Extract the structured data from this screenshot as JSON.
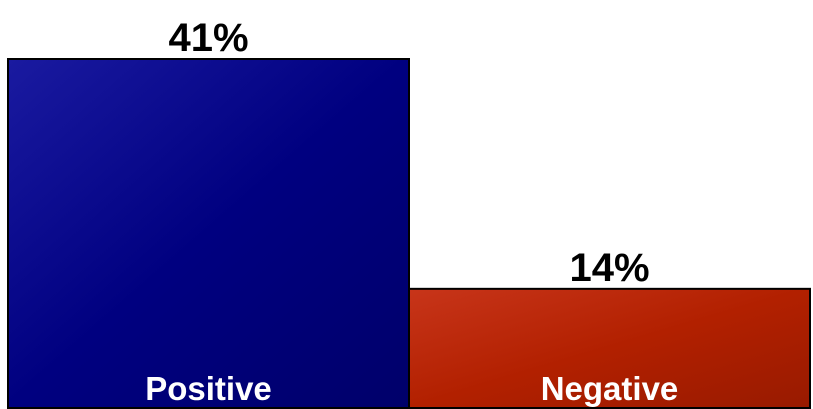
{
  "chart_data": {
    "type": "bar",
    "categories": [
      "Positive",
      "Negative"
    ],
    "values": [
      41,
      14
    ],
    "value_labels": [
      "41%",
      "14%"
    ],
    "colors": [
      "#000080",
      "#b22000"
    ],
    "title": "",
    "xlabel": "",
    "ylabel": "",
    "ylim": [
      0,
      41
    ],
    "grid": false,
    "legend": "none"
  }
}
